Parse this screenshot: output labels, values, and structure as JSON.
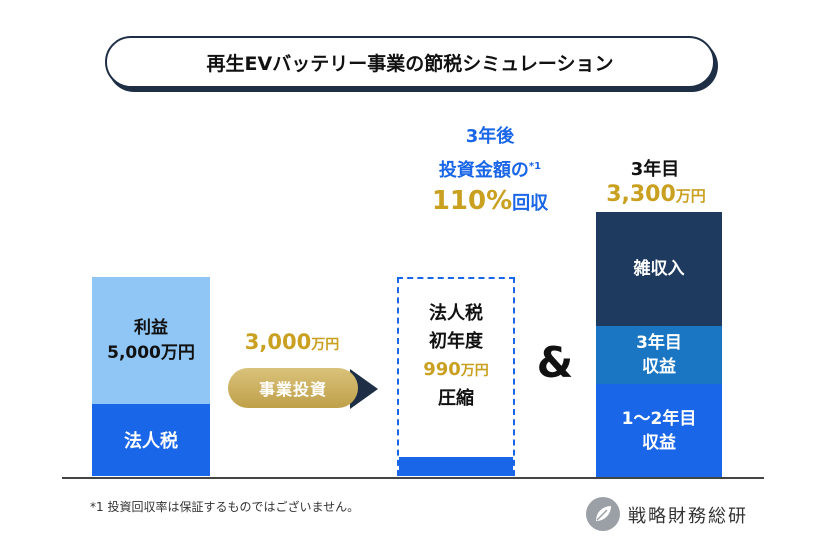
{
  "title": "再生EVバッテリー事業の節税シミュレーション",
  "left_bar": {
    "profit_label": "利益",
    "profit_amount": "5,000万円",
    "tax_label": "法人税"
  },
  "investment": {
    "amount_number": "3,000",
    "amount_unit": "万円",
    "button_label": "事業投資"
  },
  "tax_compression": {
    "line1": "法人税",
    "line2": "初年度",
    "amount_number": "990",
    "amount_unit": "万円",
    "line4": "圧縮"
  },
  "recovery": {
    "line1": "3年後",
    "line2": "投資金額の",
    "footnote_mark": "*1",
    "percent": "110%",
    "suffix": "回収"
  },
  "ampersand": "&",
  "year3": {
    "label": "3年目",
    "amount_number": "3,300",
    "amount_unit": "万円",
    "segments": {
      "misc": "雑収入",
      "y3_line1": "3年目",
      "y3_line2": "収益",
      "y12_line1": "1〜2年目",
      "y12_line2": "収益"
    }
  },
  "footnote": "*1 投資回収率は保証するものではございません。",
  "logo": {
    "text": "戦略財務総研",
    "icon": "leaf-icon"
  },
  "colors": {
    "navy": "#1e2f45",
    "blue": "#1a66e8",
    "light_blue": "#8fc6f6",
    "mid_blue": "#1a76c2",
    "dark_navy": "#1e3a5f",
    "gold": "#c9a020"
  }
}
